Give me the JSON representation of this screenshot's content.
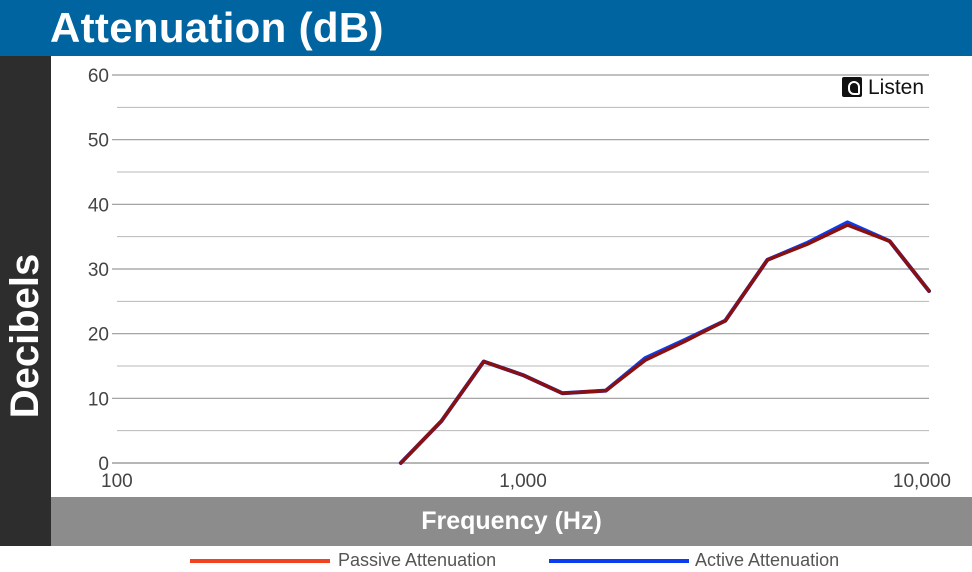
{
  "header": {
    "title": "Attenuation (dB)"
  },
  "logo": {
    "text": "Listen",
    "icon": "listen-logo-icon"
  },
  "chart_data": {
    "type": "line",
    "xscale": "log",
    "xlim": [
      100,
      10000
    ],
    "ylim": [
      0,
      60
    ],
    "title": "Attenuation (dB)",
    "xlabel": "Frequency (Hz)",
    "ylabel": "Decibels",
    "x_ticks": [
      {
        "value": 100,
        "label": "100"
      },
      {
        "value": 1000,
        "label": "1,000"
      },
      {
        "value": 10000,
        "label": "10,000"
      }
    ],
    "y_ticks": [
      {
        "value": 0,
        "label": "0"
      },
      {
        "value": 10,
        "label": "10"
      },
      {
        "value": 20,
        "label": "20"
      },
      {
        "value": 30,
        "label": "30"
      },
      {
        "value": 40,
        "label": "40"
      },
      {
        "value": 50,
        "label": "50"
      },
      {
        "value": 60,
        "label": "60"
      }
    ],
    "minor_y_gridlines": [
      5,
      15,
      25,
      35,
      45,
      55
    ],
    "grid": true,
    "legend_position": "bottom",
    "series": [
      {
        "name": "Active Attenuation",
        "color": "#0a3cf0",
        "x": [
          500,
          630,
          800,
          1000,
          1250,
          1600,
          2000,
          2500,
          3150,
          4000,
          5000,
          6300,
          8000,
          10000
        ],
        "y": [
          0,
          6.5,
          15.7,
          13.6,
          10.8,
          11.2,
          16.2,
          19.0,
          22.0,
          31.4,
          34.0,
          37.2,
          34.3,
          26.6
        ]
      },
      {
        "name": "Passive Attenuation",
        "color": "#f0421e",
        "line_color": "#8a1010",
        "x": [
          500,
          630,
          800,
          1000,
          1250,
          1600,
          2000,
          2500,
          3150,
          4000,
          5000,
          6300,
          8000,
          10000
        ],
        "y": [
          0,
          6.5,
          15.7,
          13.6,
          10.8,
          11.2,
          15.9,
          18.8,
          22.0,
          31.4,
          33.8,
          36.8,
          34.3,
          26.6
        ]
      }
    ]
  }
}
